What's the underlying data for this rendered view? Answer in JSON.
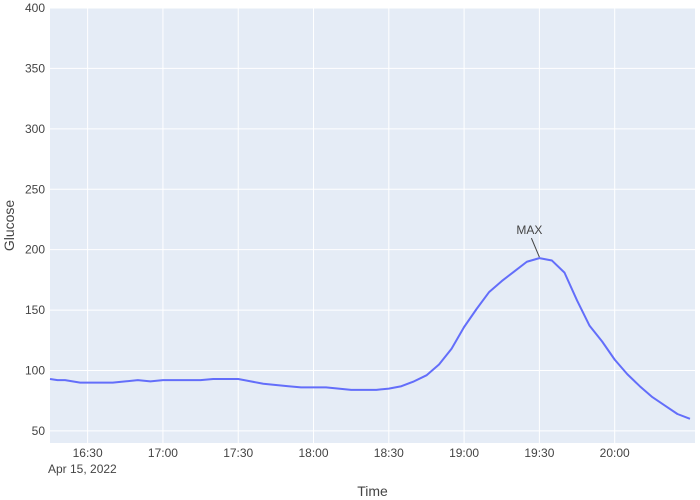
{
  "chart_data": {
    "type": "line",
    "xlabel": "Time",
    "ylabel": "Glucose",
    "date_label": "Apr 15, 2022",
    "xlim": [
      "2022-04-15 16:15",
      "2022-04-15 20:32"
    ],
    "ylim": [
      40,
      400
    ],
    "x_ticks": [
      {
        "t": "2022-04-15 16:30",
        "label": "16:30"
      },
      {
        "t": "2022-04-15 17:00",
        "label": "17:00"
      },
      {
        "t": "2022-04-15 17:30",
        "label": "17:30"
      },
      {
        "t": "2022-04-15 18:00",
        "label": "18:00"
      },
      {
        "t": "2022-04-15 18:30",
        "label": "18:30"
      },
      {
        "t": "2022-04-15 19:00",
        "label": "19:00"
      },
      {
        "t": "2022-04-15 19:30",
        "label": "19:30"
      },
      {
        "t": "2022-04-15 20:00",
        "label": "20:00"
      }
    ],
    "y_ticks": [
      50,
      100,
      150,
      200,
      250,
      300,
      350,
      400
    ],
    "grid": true,
    "colors": {
      "line": "#636efa",
      "plot_bg": "#e5ecf6",
      "grid": "#ffffff",
      "text": "#444444"
    },
    "series": [
      {
        "x": [
          "2022-04-15 16:15",
          "2022-04-15 16:18",
          "2022-04-15 16:21",
          "2022-04-15 16:24",
          "2022-04-15 16:27",
          "2022-04-15 16:30",
          "2022-04-15 16:35",
          "2022-04-15 16:40",
          "2022-04-15 16:45",
          "2022-04-15 16:50",
          "2022-04-15 16:55",
          "2022-04-15 17:00",
          "2022-04-15 17:05",
          "2022-04-15 17:10",
          "2022-04-15 17:15",
          "2022-04-15 17:20",
          "2022-04-15 17:25",
          "2022-04-15 17:30",
          "2022-04-15 17:35",
          "2022-04-15 17:40",
          "2022-04-15 17:45",
          "2022-04-15 17:50",
          "2022-04-15 17:55",
          "2022-04-15 18:00",
          "2022-04-15 18:05",
          "2022-04-15 18:10",
          "2022-04-15 18:15",
          "2022-04-15 18:20",
          "2022-04-15 18:25",
          "2022-04-15 18:30",
          "2022-04-15 18:35",
          "2022-04-15 18:40",
          "2022-04-15 18:45",
          "2022-04-15 18:50",
          "2022-04-15 18:55",
          "2022-04-15 19:00",
          "2022-04-15 19:05",
          "2022-04-15 19:10",
          "2022-04-15 19:15",
          "2022-04-15 19:20",
          "2022-04-15 19:25",
          "2022-04-15 19:30",
          "2022-04-15 19:35",
          "2022-04-15 19:40",
          "2022-04-15 19:45",
          "2022-04-15 19:50",
          "2022-04-15 19:55",
          "2022-04-15 20:00",
          "2022-04-15 20:05",
          "2022-04-15 20:10",
          "2022-04-15 20:15",
          "2022-04-15 20:20",
          "2022-04-15 20:25",
          "2022-04-15 20:30"
        ],
        "y": [
          93,
          92,
          92,
          91,
          90,
          90,
          90,
          90,
          91,
          92,
          91,
          92,
          92,
          92,
          92,
          93,
          93,
          93,
          91,
          89,
          88,
          87,
          86,
          86,
          86,
          85,
          84,
          84,
          84,
          85,
          87,
          91,
          96,
          105,
          118,
          136,
          151,
          165,
          174,
          182,
          190,
          193,
          191,
          181,
          158,
          137,
          124,
          109,
          97,
          87,
          78,
          71,
          64,
          60
        ]
      }
    ],
    "annotations": [
      {
        "text": "MAX",
        "x": "2022-04-15 19:30",
        "y": 193
      }
    ]
  }
}
